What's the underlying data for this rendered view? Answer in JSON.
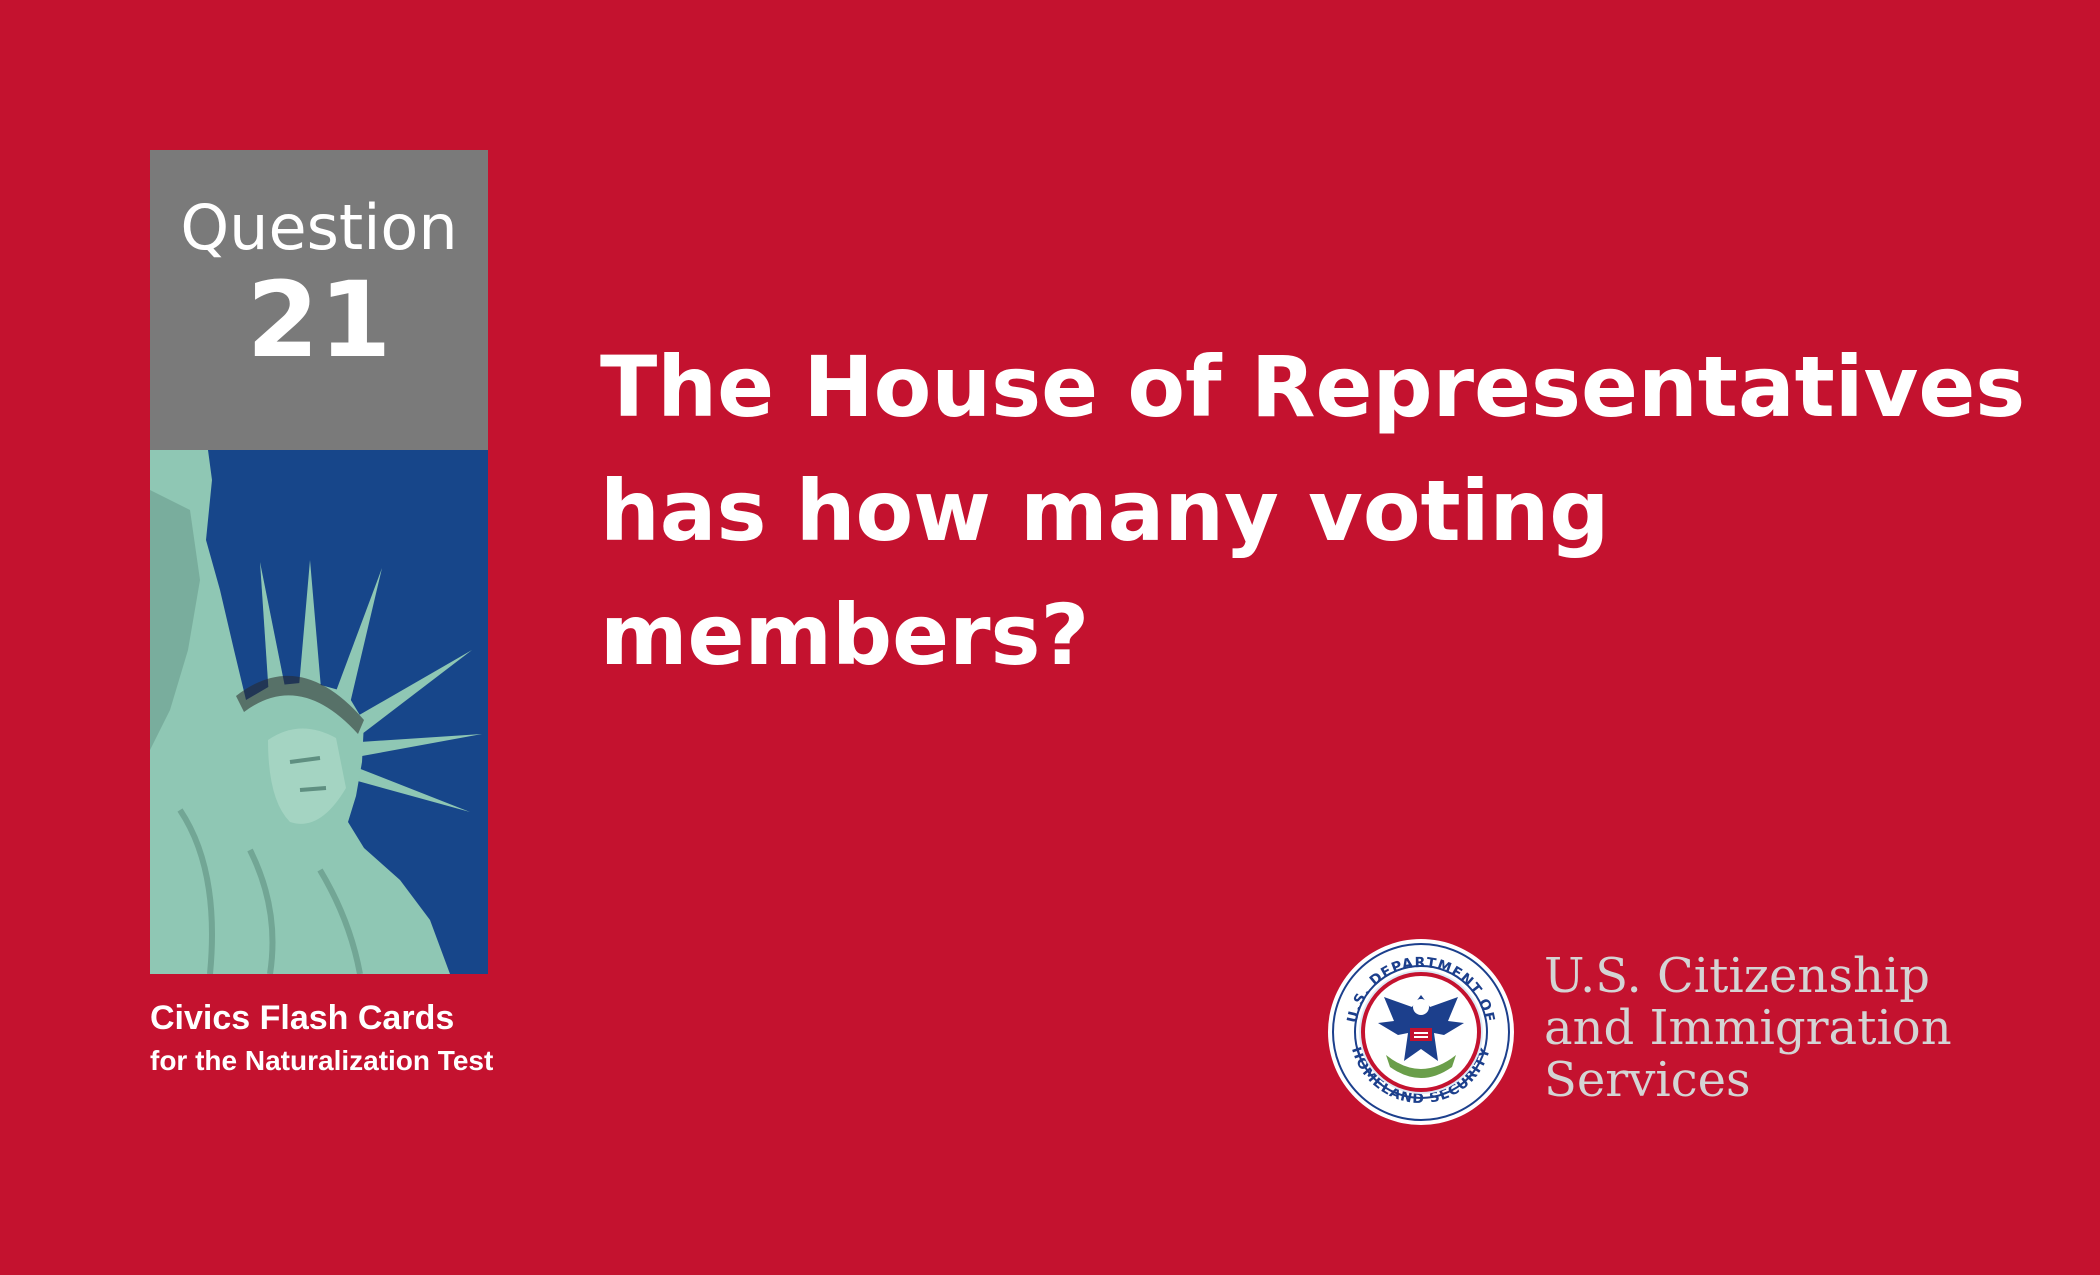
{
  "colors": {
    "background": "#c4122f",
    "question_box": "#7a7a7a",
    "sky": "#17468a",
    "statue": "#8fc7b4",
    "agency_text": "#d4d4d4",
    "seal_blue": "#1c3f8c"
  },
  "sidebar": {
    "question_label": "Question",
    "question_number": "21"
  },
  "photo": {
    "icon": "statue-of-liberty-photo"
  },
  "caption": {
    "line1": "Civics Flash Cards",
    "line2": "for the Naturalization Test"
  },
  "question": {
    "lines": [
      "The House of Representatives",
      "has how many voting",
      "members?"
    ]
  },
  "logo": {
    "seal_icon": "dhs-seal-icon",
    "seal_text_top": "U.S. DEPARTMENT OF",
    "seal_text_bottom": "HOMELAND SECURITY",
    "agency_lines": [
      "U.S. Citizenship",
      "and Immigration",
      "Services"
    ]
  }
}
